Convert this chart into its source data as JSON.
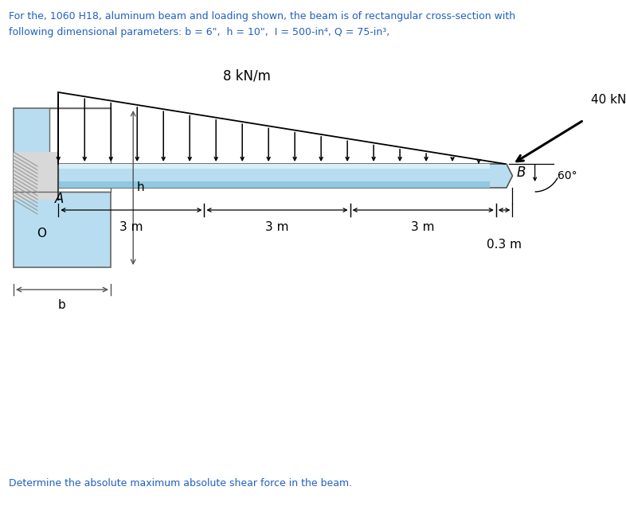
{
  "title_line1": "For the, 1060 H18, aluminum beam and loading shown, the beam is of rectangular cross-section with",
  "title_line2": "following dimensional parameters: b = 6\",  h = 10\",  I = 500-in⁴, Q = 75-in³,",
  "bottom_text": "Determine the absolute maximum absolute shear force in the beam.",
  "title_color": "#2060c0",
  "bottom_text_color": "#2060c0",
  "bg_color": "#ffffff",
  "beam_color": "#b8ddf0",
  "beam_stripe_color": "#90c8e0",
  "cross_section_color": "#b8ddf0",
  "load_label": "8 kN/m",
  "force_label": "40 kN",
  "angle_label": "60°",
  "dist_labels": [
    "3 m",
    "3 m",
    "3 m"
  ],
  "dist_label_04": "0.3 m",
  "label_A": "A",
  "label_B": "B",
  "label_h": "h",
  "label_b": "b",
  "label_O": "O"
}
